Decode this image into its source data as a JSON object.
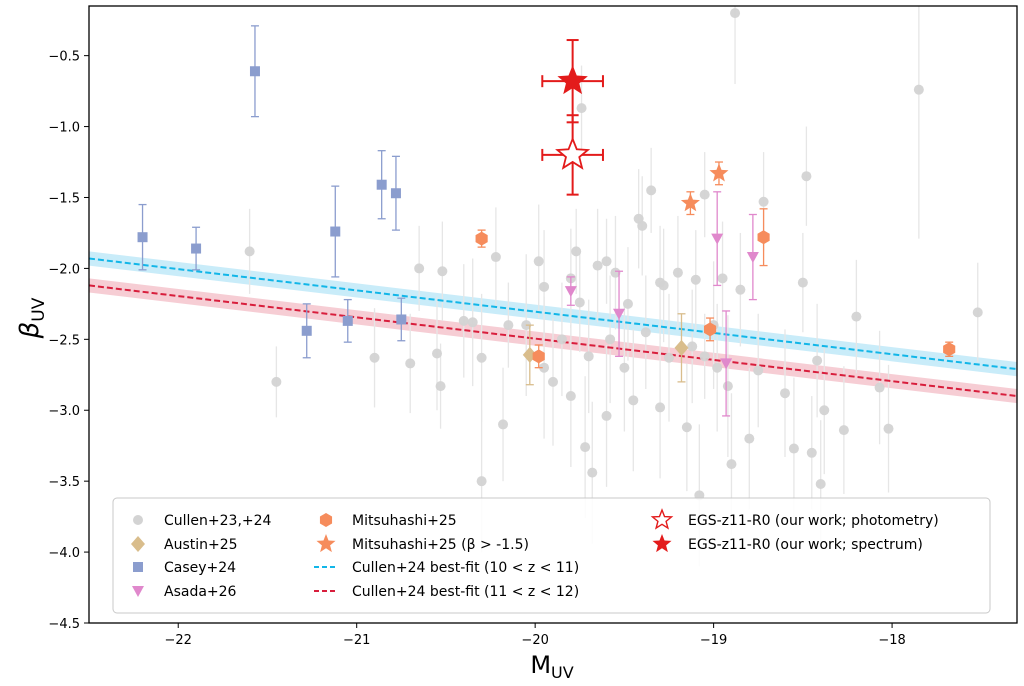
{
  "chart_data": {
    "type": "scatter",
    "xlabel_main": "M",
    "xlabel_sub": "UV",
    "ylabel_main": "β",
    "ylabel_sub": "UV",
    "xlim": [
      -22.5,
      -17.3
    ],
    "ylim": [
      -4.5,
      -0.15
    ],
    "xticks": [
      -22,
      -21,
      -20,
      -19,
      -18
    ],
    "yticks": [
      -4.5,
      -4.0,
      -3.5,
      -3.0,
      -2.5,
      -2.0,
      -1.5,
      -1.0,
      -0.5
    ],
    "xtick_labels": [
      "−22",
      "−21",
      "−20",
      "−19",
      "−18"
    ],
    "ytick_labels": [
      "−4.5",
      "−4.0",
      "−3.5",
      "−3.0",
      "−2.5",
      "−2.0",
      "−1.5",
      "−1.0",
      "−0.5"
    ],
    "grid": false,
    "legend_position": "bottom",
    "colors": {
      "cullen": "#d3d3d3",
      "cullen_err": "#e6e6e6",
      "austin": "#d9bd8c",
      "casey": "#8b9dce",
      "asada": "#e088cc",
      "mitsuhashi": "#f68c5c",
      "fit1": "#12b6e8",
      "fit1_band": "#bfe9f8",
      "fit2": "#d81e3c",
      "fit2_band": "#f4c4cc",
      "egs": "#e31b1b"
    },
    "fits": [
      {
        "name": "Cullen+24 best-fit (10 < z < 11)",
        "x": [
          -22.5,
          -17.3
        ],
        "y": [
          -1.93,
          -2.71
        ],
        "band": 0.05,
        "color_key": "fit1",
        "band_key": "fit1_band"
      },
      {
        "name": "Cullen+24 best-fit (11 < z < 12)",
        "x": [
          -22.5,
          -17.3
        ],
        "y": [
          -2.12,
          -2.9
        ],
        "band": 0.05,
        "color_key": "fit2",
        "band_key": "fit2_band"
      }
    ],
    "series": [
      {
        "name": "Cullen+23,+24",
        "marker": "circle",
        "color_key": "cullen",
        "err_key": "cullen_err",
        "points": [
          [
            -21.6,
            -1.88,
            0.3
          ],
          [
            -21.45,
            -2.8,
            0.25
          ],
          [
            -20.9,
            -2.63,
            0.35
          ],
          [
            -20.7,
            -2.67,
            0.35
          ],
          [
            -20.65,
            -2.0,
            0.3
          ],
          [
            -20.55,
            -2.6,
            0.4
          ],
          [
            -20.53,
            -2.83,
            0.3
          ],
          [
            -20.52,
            -2.02,
            0.35
          ],
          [
            -20.4,
            -2.37,
            0.4
          ],
          [
            -20.35,
            -2.38,
            0.45
          ],
          [
            -20.3,
            -3.5,
            0.5
          ],
          [
            -20.3,
            -2.63,
            0.45
          ],
          [
            -20.22,
            -1.92,
            0.35
          ],
          [
            -20.18,
            -3.1,
            0.4
          ],
          [
            -20.05,
            -2.4,
            0.5
          ],
          [
            -19.98,
            -1.95,
            0.4
          ],
          [
            -19.95,
            -2.13,
            0.4
          ],
          [
            -19.95,
            -2.7,
            0.5
          ],
          [
            -19.9,
            -2.8,
            0.45
          ],
          [
            -19.85,
            -2.5,
            0.4
          ],
          [
            -19.8,
            -2.9,
            0.5
          ],
          [
            -19.75,
            -2.24,
            0.35
          ],
          [
            -19.72,
            -3.26,
            0.5
          ],
          [
            -19.7,
            -2.62,
            0.4
          ],
          [
            -19.68,
            -3.44,
            0.5
          ],
          [
            -19.65,
            -1.98,
            0.4
          ],
          [
            -19.6,
            -3.04,
            0.5
          ],
          [
            -19.58,
            -2.5,
            0.45
          ],
          [
            -19.55,
            -2.03,
            0.4
          ],
          [
            -19.5,
            -2.7,
            0.45
          ],
          [
            -19.48,
            -2.25,
            0.4
          ],
          [
            -19.45,
            -2.93,
            0.5
          ],
          [
            -19.42,
            -1.65,
            0.35
          ],
          [
            -19.4,
            -1.7,
            0.35
          ],
          [
            -19.38,
            -2.45,
            0.4
          ],
          [
            -19.35,
            -1.45,
            0.3
          ],
          [
            -19.3,
            -2.98,
            0.5
          ],
          [
            -19.28,
            -2.12,
            0.4
          ],
          [
            -19.25,
            -2.63,
            0.45
          ],
          [
            -19.2,
            -2.03,
            0.4
          ],
          [
            -19.15,
            -3.12,
            0.45
          ],
          [
            -19.12,
            -2.55,
            0.4
          ],
          [
            -19.1,
            -2.08,
            0.35
          ],
          [
            -19.08,
            -3.6,
            0.5
          ],
          [
            -19.05,
            -1.48,
            0.3
          ],
          [
            -19.0,
            -2.4,
            0.45
          ],
          [
            -18.98,
            -2.7,
            0.45
          ],
          [
            -18.95,
            -2.07,
            0.4
          ],
          [
            -18.92,
            -2.83,
            0.5
          ],
          [
            -18.9,
            -3.38,
            0.5
          ],
          [
            -18.88,
            -0.2,
            0.5
          ],
          [
            -18.85,
            -2.15,
            0.4
          ],
          [
            -18.8,
            -3.2,
            0.5
          ],
          [
            -18.75,
            -2.72,
            0.4
          ],
          [
            -18.72,
            -1.53,
            0.35
          ],
          [
            -18.6,
            -2.88,
            0.45
          ],
          [
            -18.55,
            -3.27,
            0.5
          ],
          [
            -18.5,
            -2.1,
            0.35
          ],
          [
            -18.48,
            -1.35,
            0.35
          ],
          [
            -18.45,
            -3.3,
            0.4
          ],
          [
            -18.42,
            -2.65,
            0.4
          ],
          [
            -18.4,
            -3.52,
            0.45
          ],
          [
            -18.38,
            -3.0,
            0.45
          ],
          [
            -18.27,
            -3.14,
            0.45
          ],
          [
            -18.2,
            -2.34,
            0.4
          ],
          [
            -18.07,
            -2.84,
            0.4
          ],
          [
            -18.02,
            -3.13,
            0.45
          ],
          [
            -17.85,
            -0.74,
            1.05
          ],
          [
            -17.52,
            -2.31,
            0.35
          ],
          [
            -19.74,
            -0.87,
            0.3
          ],
          [
            -19.6,
            -1.95,
            0.3
          ],
          [
            -19.8,
            -2.07,
            0.35
          ],
          [
            -19.77,
            -1.88,
            0.3
          ],
          [
            -20.15,
            -2.4,
            0.3
          ],
          [
            -19.3,
            -2.1,
            0.4
          ],
          [
            -19.05,
            -2.62,
            0.3
          ]
        ]
      },
      {
        "name": "Austin+25",
        "marker": "diamond",
        "color_key": "austin",
        "points": [
          [
            -20.03,
            -2.61,
            0.21
          ],
          [
            -19.18,
            -2.56,
            0.24
          ]
        ]
      },
      {
        "name": "Casey+24",
        "marker": "square",
        "color_key": "casey",
        "points": [
          [
            -22.2,
            -1.78,
            0.23
          ],
          [
            -21.9,
            -1.86,
            0.15
          ],
          [
            -21.57,
            -0.61,
            0.32
          ],
          [
            -21.28,
            -2.44,
            0.19
          ],
          [
            -21.12,
            -1.74,
            0.32
          ],
          [
            -21.05,
            -2.37,
            0.15
          ],
          [
            -20.86,
            -1.41,
            0.24
          ],
          [
            -20.78,
            -1.47,
            0.26
          ],
          [
            -20.75,
            -2.36,
            0.15
          ]
        ]
      },
      {
        "name": "Asada+26",
        "marker": "tri_down",
        "color_key": "asada",
        "points": [
          [
            -19.8,
            -2.16,
            0.1
          ],
          [
            -19.53,
            -2.32,
            0.3
          ],
          [
            -18.98,
            -1.79,
            0.33
          ],
          [
            -18.93,
            -2.67,
            0.37
          ],
          [
            -18.78,
            -1.92,
            0.3
          ]
        ]
      },
      {
        "name": "Mitsuhashi+25",
        "marker": "hexagon",
        "color_key": "mitsuhashi",
        "points": [
          [
            -20.3,
            -1.79,
            0.06
          ],
          [
            -19.98,
            -2.62,
            0.08
          ],
          [
            -19.02,
            -2.43,
            0.08
          ],
          [
            -18.72,
            -1.78,
            0.2
          ],
          [
            -17.68,
            -2.57,
            0.05
          ]
        ]
      },
      {
        "name": "Mitsuhashi+25 (β > -1.5)",
        "marker": "star",
        "color_key": "mitsuhashi",
        "points": [
          [
            -19.13,
            -1.54,
            0.08
          ],
          [
            -18.97,
            -1.33,
            0.08
          ]
        ]
      },
      {
        "name": "EGS-z11-R0 (our work; photometry)",
        "marker": "star_open",
        "color_key": "egs",
        "points": [
          [
            -19.79,
            -1.2,
            0.28,
            0.17
          ]
        ]
      },
      {
        "name": "EGS-z11-R0 (our work; spectrum)",
        "marker": "star",
        "color_key": "egs",
        "points": [
          [
            -19.79,
            -0.68,
            0.29,
            0.17
          ]
        ]
      }
    ],
    "legend": [
      {
        "label": "Cullen+23,+24",
        "marker": "circle",
        "color_key": "cullen"
      },
      {
        "label": "Austin+25",
        "marker": "diamond",
        "color_key": "austin"
      },
      {
        "label": "Casey+24",
        "marker": "square",
        "color_key": "casey"
      },
      {
        "label": "Asada+26",
        "marker": "tri_down",
        "color_key": "asada"
      },
      {
        "label": "Mitsuhashi+25",
        "marker": "hexagon",
        "color_key": "mitsuhashi"
      },
      {
        "label": "Mitsuhashi+25 (β > -1.5)",
        "marker": "star",
        "color_key": "mitsuhashi"
      },
      {
        "label": "Cullen+24 best-fit (10 < z < 11)",
        "marker": "dash",
        "color_key": "fit1"
      },
      {
        "label": "Cullen+24 best-fit (11 < z < 12)",
        "marker": "dash",
        "color_key": "fit2"
      },
      {
        "label": "EGS-z11-R0 (our work; photometry)",
        "marker": "star_open",
        "color_key": "egs"
      },
      {
        "label": "EGS-z11-R0 (our work; spectrum)",
        "marker": "star",
        "color_key": "egs"
      }
    ]
  }
}
